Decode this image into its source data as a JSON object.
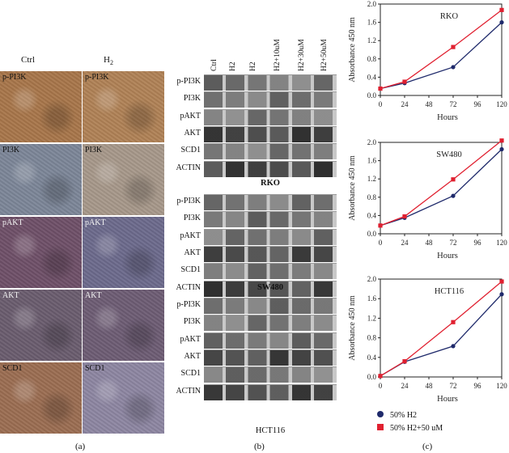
{
  "panel_a": {
    "letter": "(a)",
    "col_headers": [
      "Ctrl",
      "H2"
    ],
    "rows": [
      {
        "left": "p-PI3K",
        "right": "p-PI3K",
        "left_color": "#a8764a",
        "right_color": "#b08256"
      },
      {
        "left": "PI3K",
        "right": "PI3K",
        "left_color": "#7c8698",
        "right_color": "#a7988a"
      },
      {
        "left": "pAKT",
        "right": "pAKT",
        "left_color": "#6f5068",
        "right_color": "#6c6a8c"
      },
      {
        "left": "AKT",
        "right": "AKT",
        "left_color": "#6a5c6e",
        "right_color": "#6d5c74"
      },
      {
        "left": "SCD1",
        "right": "SCD1",
        "left_color": "#9b6d52",
        "right_color": "#8d86a2"
      }
    ]
  },
  "panel_b": {
    "letter": "(b)",
    "lanes": [
      "Ctrl",
      "H2",
      "H2",
      "H2+10uM",
      "H2+30uM",
      "H2+50uM"
    ],
    "groups": [
      {
        "name": "RKO",
        "bands": [
          "p-PI3K",
          "PI3K",
          "pAKT",
          "AKT",
          "SCD1",
          "ACTIN"
        ]
      },
      {
        "name": "SW480",
        "bands": [
          "p-PI3K",
          "PI3K",
          "pAKT",
          "AKT",
          "SCD1",
          "ACTIN"
        ]
      },
      {
        "name": "HCT116",
        "bands": [
          "p-PI3K",
          "PI3K",
          "pAKT",
          "AKT",
          "SCD1",
          "ACTIN"
        ]
      }
    ]
  },
  "panel_c": {
    "letter": "(c)",
    "legend": [
      "50% H2",
      "50% H2+50 uM"
    ]
  },
  "colors": {
    "series1": "#1f2a6b",
    "series2": "#e02030"
  },
  "chart_data": [
    {
      "type": "line",
      "title": "RKO",
      "xlabel": "Hours",
      "ylabel": "Absorbance 450 nm",
      "x": [
        0,
        24,
        72,
        120
      ],
      "xticks": [
        0,
        24,
        48,
        72,
        96,
        120
      ],
      "yticks": [
        0.0,
        0.4,
        0.8,
        1.2,
        1.6,
        2.0
      ],
      "xlim": [
        0,
        120
      ],
      "ylim": [
        0,
        2.0
      ],
      "series": [
        {
          "name": "50% H2",
          "values": [
            0.15,
            0.27,
            0.62,
            1.6
          ]
        },
        {
          "name": "50% H2+50 uM",
          "values": [
            0.15,
            0.3,
            1.06,
            1.87
          ]
        }
      ]
    },
    {
      "type": "line",
      "title": "SW480",
      "xlabel": "Hours",
      "ylabel": "Absorbance 450 nm",
      "x": [
        0,
        24,
        72,
        120
      ],
      "xticks": [
        0,
        24,
        48,
        72,
        96,
        120
      ],
      "yticks": [
        0.0,
        0.4,
        0.8,
        1.2,
        1.6,
        2.0
      ],
      "xlim": [
        0,
        120
      ],
      "ylim": [
        0,
        2.0
      ],
      "series": [
        {
          "name": "50% H2",
          "values": [
            0.18,
            0.35,
            0.83,
            1.85
          ]
        },
        {
          "name": "50% H2+50 uM",
          "values": [
            0.18,
            0.38,
            1.19,
            2.04
          ]
        }
      ]
    },
    {
      "type": "line",
      "title": "HCT116",
      "xlabel": "Hours",
      "ylabel": "Absorbance 450 nm",
      "x": [
        0,
        24,
        72,
        120
      ],
      "xticks": [
        0,
        24,
        48,
        72,
        96,
        120
      ],
      "yticks": [
        0.0,
        0.4,
        0.8,
        1.2,
        1.6,
        2.0
      ],
      "xlim": [
        0,
        120
      ],
      "ylim": [
        0,
        2.0
      ],
      "series": [
        {
          "name": "50% H2",
          "values": [
            0.02,
            0.31,
            0.63,
            1.69
          ]
        },
        {
          "name": "50% H2+50 uM",
          "values": [
            0.02,
            0.32,
            1.12,
            1.95
          ]
        }
      ]
    }
  ]
}
